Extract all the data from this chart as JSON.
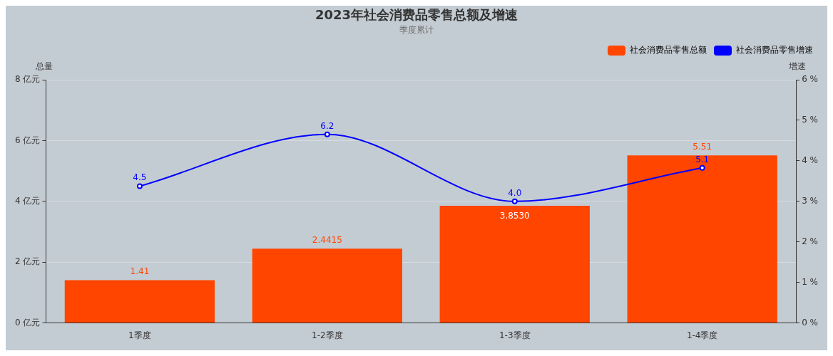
{
  "chart_data": {
    "type": "bar",
    "title": "2023年社会消费品零售总额及增速",
    "subtitle": "季度累计",
    "ylabel": "总量",
    "y2label": "增速",
    "categories": [
      "1季度",
      "1-2季度",
      "1-3季度",
      "1-4季度"
    ],
    "series": [
      {
        "name": "社会消费品零售总额",
        "color": "#ff4500",
        "values": [
          1.41,
          2.4415,
          3.853,
          5.51
        ],
        "value_labels": [
          "1.41",
          "2.4415",
          "3.8530",
          "5.51"
        ]
      },
      {
        "name": "社会消费品零售增速",
        "type": "line",
        "color": "#0000ff",
        "values": [
          4.5,
          6.2,
          4.0,
          5.1
        ],
        "value_labels": [
          "4.5",
          "6.2",
          "4.0",
          "5.1"
        ]
      }
    ],
    "ylim": [
      0,
      8
    ],
    "yticks": [
      {
        "value": 0,
        "label": "0 亿元"
      },
      {
        "value": 2,
        "label": "2 亿元"
      },
      {
        "value": 4,
        "label": "4 亿元"
      },
      {
        "value": 6,
        "label": "6 亿元"
      },
      {
        "value": 8,
        "label": "8 亿元"
      }
    ],
    "y2lim": [
      0,
      6
    ],
    "y2ticks": [
      {
        "value": 0,
        "label": "0 %"
      },
      {
        "value": 1,
        "label": "1 %"
      },
      {
        "value": 2,
        "label": "2 %"
      },
      {
        "value": 3,
        "label": "3 %"
      },
      {
        "value": 4,
        "label": "4 %"
      },
      {
        "value": 5,
        "label": "5 %"
      },
      {
        "value": 6,
        "label": "6 %"
      }
    ],
    "grid": "y",
    "legend": "top right",
    "marker": "circle"
  }
}
